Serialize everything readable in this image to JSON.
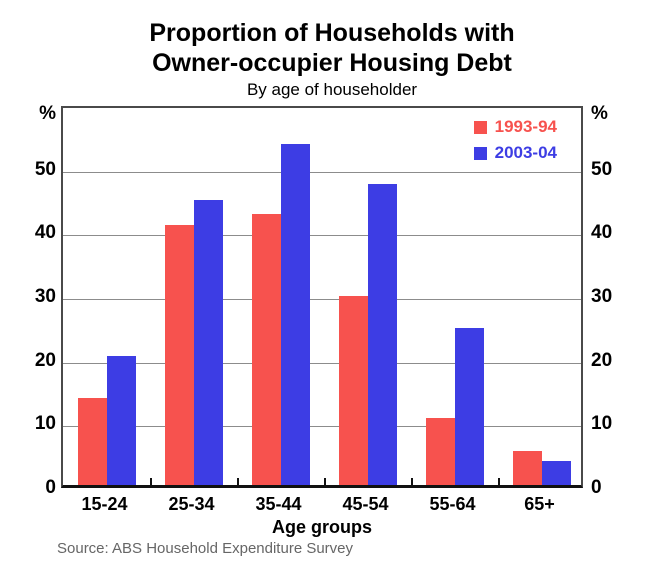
{
  "title": {
    "line1": "Proportion of Households with",
    "line2": "Owner-occupier Housing Debt",
    "subtitle": "By age of householder"
  },
  "chart_data": {
    "type": "bar",
    "categories": [
      "15-24",
      "25-34",
      "35-44",
      "45-54",
      "55-64",
      "65+"
    ],
    "series": [
      {
        "name": "1993-94",
        "color": "#f7524e",
        "values": [
          13.6,
          40.9,
          42.6,
          29.7,
          10.6,
          5.3
        ]
      },
      {
        "name": "2003-04",
        "color": "#3d3de4",
        "values": [
          20.2,
          44.7,
          53.6,
          47.3,
          24.7,
          3.7
        ]
      }
    ],
    "xlabel": "Age groups",
    "ylabel_left": "%",
    "ylabel_right": "%",
    "yticks": [
      0,
      10,
      20,
      30,
      40,
      50
    ],
    "ylim": [
      0,
      60
    ],
    "grid": true,
    "legend_position": "top-right"
  },
  "source": "Source: ABS Household Expenditure Survey",
  "colors": {
    "series_1993_94": "#f7524e",
    "series_2003_04": "#3d3de4",
    "gridline": "#8c8c8c",
    "plot_border": "#4a4a4a",
    "source_text": "#666666"
  }
}
